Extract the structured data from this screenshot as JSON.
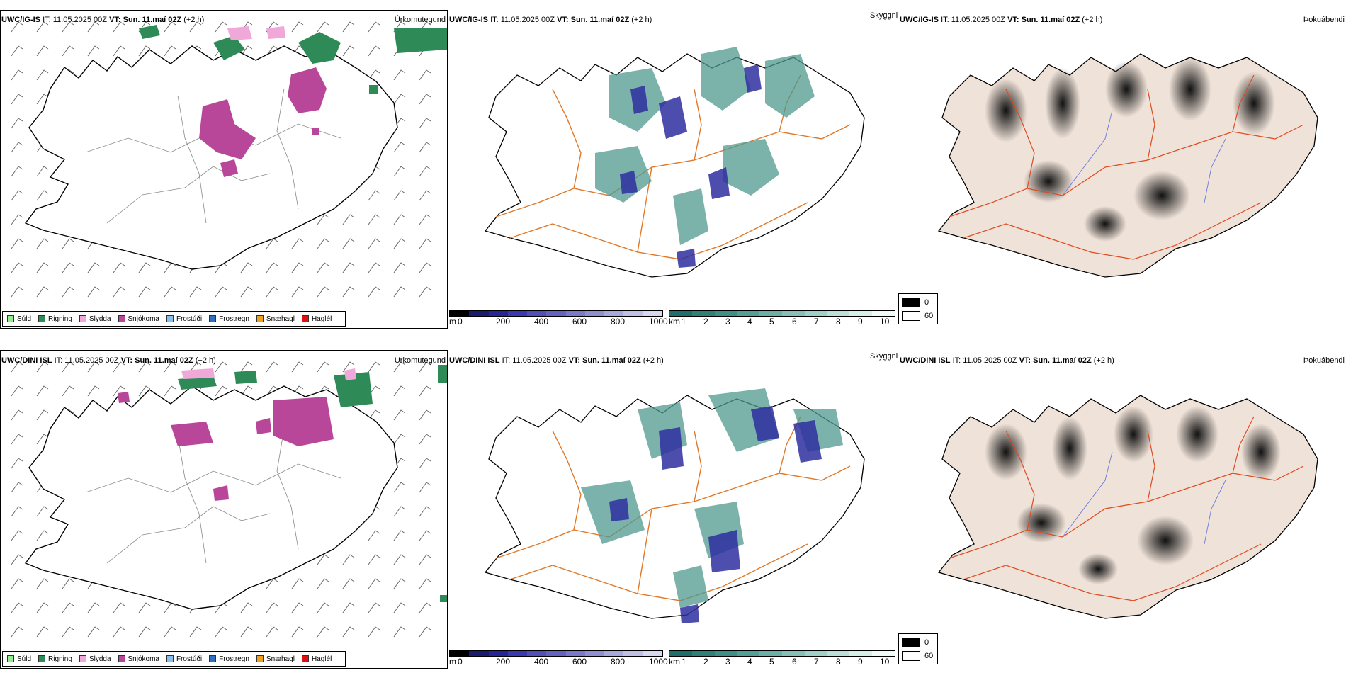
{
  "rows": [
    {
      "left": {
        "model": "UWC/IG-IS",
        "it_label": "IT:",
        "it_value": "11.05.2025 00Z",
        "vt_label": "VT:",
        "vt_value": "Sun. 11.maí 02Z",
        "lead": "(+2 h)",
        "field_title": "Úrkomutegund"
      },
      "middle": {
        "model": "UWC/IG-IS",
        "it_label": "IT:",
        "it_value": "11.05.2025 00Z",
        "vt_label": "VT:",
        "vt_value": "Sun. 11.maí 02Z",
        "lead": "(+2 h)",
        "field_title": "Skyggni"
      },
      "right": {
        "model": "UWC/IG-IS",
        "it_label": "IT:",
        "it_value": "11.05.2025 00Z",
        "vt_label": "VT:",
        "vt_value": "Sun. 11.maí 02Z",
        "lead": "(+2 h)",
        "field_title": "Þokuábendi"
      }
    },
    {
      "left": {
        "model": "UWC/DINI ISL",
        "it_label": "IT:",
        "it_value": "11.05.2025 00Z",
        "vt_label": "VT:",
        "vt_value": "Sun. 11.maí 02Z",
        "lead": "(+2 h)",
        "field_title": "Úrkomutegund"
      },
      "middle": {
        "model": "UWC/DINI ISL",
        "it_label": "IT:",
        "it_value": "11.05.2025 00Z",
        "vt_label": "VT:",
        "vt_value": "Sun. 11.maí 02Z",
        "lead": "(+2 h)",
        "field_title": "Skyggni"
      },
      "right": {
        "model": "UWC/DINI ISL",
        "it_label": "IT:",
        "it_value": "11.05.2025 00Z",
        "vt_label": "VT:",
        "vt_value": "Sun. 11.maí 02Z",
        "lead": "(+2 h)",
        "field_title": "Þokuábendi"
      }
    }
  ],
  "precip_legend": [
    {
      "label": "Súld",
      "color": "#90ee90"
    },
    {
      "label": "Rigning",
      "color": "#2e8b57"
    },
    {
      "label": "Slydda",
      "color": "#f0a8d8"
    },
    {
      "label": "Snjókoma",
      "color": "#b8479a"
    },
    {
      "label": "Frostúði",
      "color": "#87bff0"
    },
    {
      "label": "Frostregn",
      "color": "#2f6fc0"
    },
    {
      "label": "Snæhagl",
      "color": "#f0a020"
    },
    {
      "label": "Haglél",
      "color": "#e01010"
    }
  ],
  "cloudbase_scale": {
    "unit": "m",
    "ticks": [
      "0",
      "200",
      "400",
      "600",
      "800",
      "1000"
    ],
    "colors": [
      "#000000",
      "#1a1a6e",
      "#25259a",
      "#3a3ab0",
      "#5050b8",
      "#6464c0",
      "#7a7ac8",
      "#9090d0",
      "#a8a8da",
      "#c0c0e4",
      "#d8d8ee"
    ]
  },
  "visibility_scale": {
    "unit": "km",
    "ticks": [
      "1",
      "2",
      "3",
      "4",
      "5",
      "6",
      "7",
      "8",
      "9",
      "10"
    ],
    "colors": [
      "#1f6f6a",
      "#2f8078",
      "#3f8f86",
      "#55a095",
      "#6db0a6",
      "#86c0b6",
      "#a0d0c6",
      "#bcdfd8",
      "#d8eee9",
      "#f2faf8"
    ]
  },
  "fog_legend": [
    {
      "label": "0",
      "color": "#000000"
    },
    {
      "label": "60",
      "color": "#ffffff"
    }
  ],
  "colors": {
    "snow": "#b8479a",
    "rain": "#2e8b57",
    "sleet": "#f0a8d8",
    "cloud_blue": "#2f2fa0",
    "vis_teal": "#4f9a90",
    "roads": "#e07828",
    "land_beige": "#efe2d8",
    "fog_gray": "#555555"
  }
}
